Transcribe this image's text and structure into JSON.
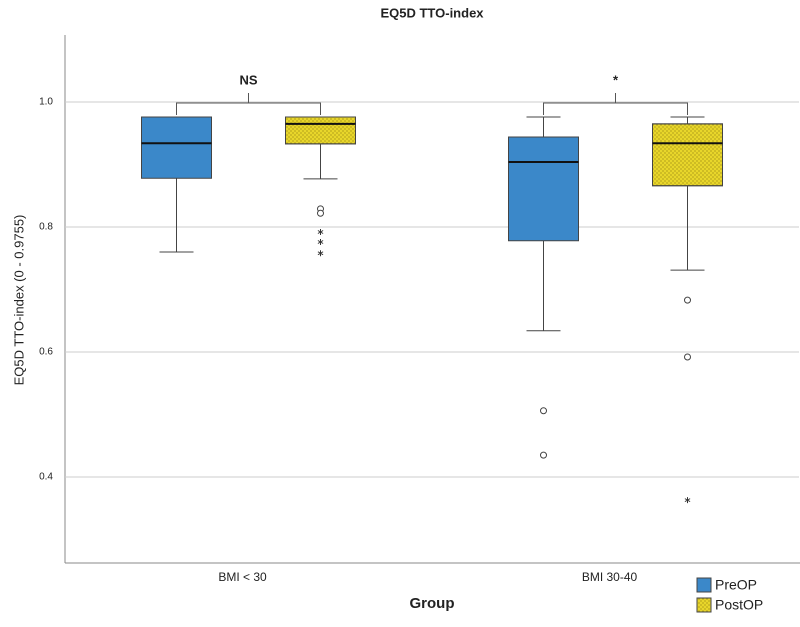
{
  "chart_data": {
    "type": "box",
    "title": "EQ5D TTO-index",
    "x_label": "Group",
    "y_label": "EQ5D TTO-index (0 - 0.9755)",
    "categories": [
      "BMI < 30",
      "BMI 30-40"
    ],
    "significance": [
      "NS",
      "*"
    ],
    "ylim": [
      0.26,
      1.1
    ],
    "yticks": [
      0.4,
      0.6,
      0.8,
      {
        "value": 1,
        "label": "1.0"
      }
    ],
    "grid": true,
    "legend": "bottom-right",
    "series": [
      {
        "name": "PreOP",
        "color": "#3b88c9",
        "min": [
          0.76,
          0.634
        ],
        "q1": [
          0.878,
          0.778
        ],
        "median": [
          0.934,
          0.904
        ],
        "q3": [
          0.976,
          0.944
        ],
        "max": [
          0.976,
          0.976
        ],
        "outliers": [
          [],
          [
            0.506,
            0.435
          ]
        ],
        "extremes": [
          [],
          []
        ]
      },
      {
        "name": "PostOP",
        "color": "#e8d62a",
        "min": [
          0.877,
          0.731
        ],
        "q1": [
          0.933,
          0.866
        ],
        "median": [
          0.965,
          0.934
        ],
        "q3": [
          0.976,
          0.965
        ],
        "max": [
          0.976,
          0.976
        ],
        "outliers": [
          [
            0.829,
            0.822
          ],
          [
            0.683,
            0.592
          ]
        ],
        "extremes": [
          [
            0.792,
            0.776,
            0.758
          ],
          [
            0.363
          ]
        ]
      }
    ]
  }
}
